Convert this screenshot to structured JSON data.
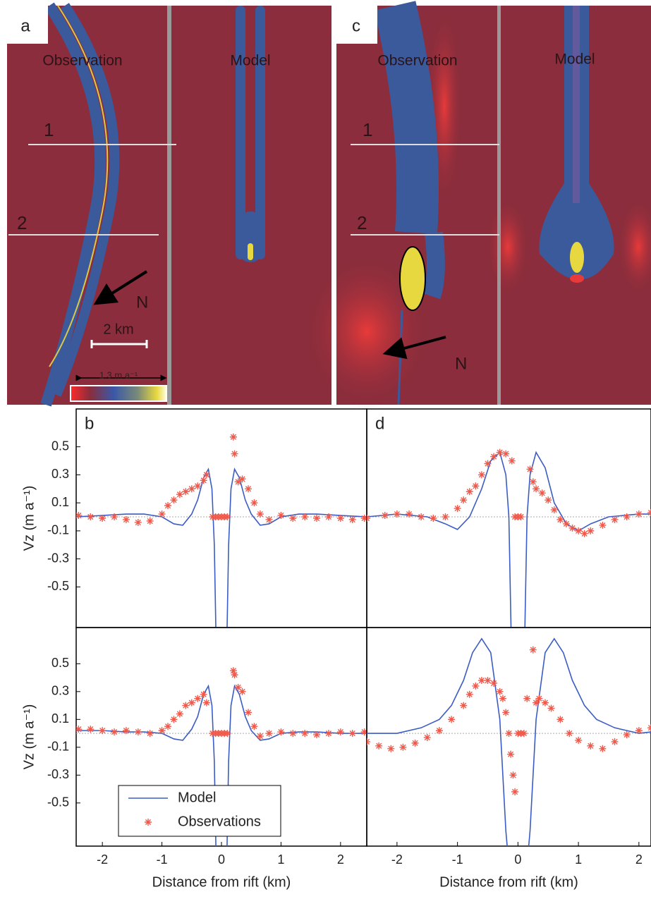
{
  "image_panels": [
    {
      "label": "a",
      "observation_title": "Observation",
      "model_title": "Model",
      "profiles": [
        "1",
        "2"
      ],
      "north": "N",
      "scale_bar": "2 km",
      "colorbar_label": "1.3 m a⁻¹"
    },
    {
      "label": "c",
      "observation_title": "Observation",
      "model_title": "Model",
      "profiles": [
        "1",
        "2"
      ],
      "north": "N"
    }
  ],
  "chart_data": [
    {
      "type": "line",
      "panel_label": "b",
      "ylabel": "Vz (m a⁻¹)",
      "xlim": [
        -2.44,
        2.44
      ],
      "ylim": [
        -0.79,
        0.77
      ],
      "yticks": [
        0.5,
        0.3,
        0.1,
        -0.1,
        -0.3,
        -0.5
      ],
      "series": [
        {
          "mode": "line",
          "color": "#3b5cc4",
          "x": [
            -2.44,
            -2,
            -1.6,
            -1.3,
            -1,
            -0.8,
            -0.65,
            -0.5,
            -0.4,
            -0.3,
            -0.22,
            -0.16,
            -0.12,
            -0.09,
            0.09,
            0.12,
            0.16,
            0.22,
            0.3,
            0.4,
            0.5,
            0.65,
            0.8,
            1,
            1.3,
            1.6,
            2,
            2.44
          ],
          "values": [
            0,
            0.01,
            0.02,
            0.02,
            0,
            -0.05,
            -0.06,
            0.02,
            0.12,
            0.28,
            0.34,
            0.2,
            -0.2,
            -0.9,
            -0.9,
            -0.2,
            0.2,
            0.34,
            0.28,
            0.12,
            0.02,
            -0.06,
            -0.05,
            0,
            0.02,
            0.02,
            0.01,
            0
          ]
        },
        {
          "mode": "markers",
          "color": "#f0584a",
          "x": [
            -2.4,
            -2.2,
            -2.0,
            -1.8,
            -1.6,
            -1.4,
            -1.2,
            -1.0,
            -0.9,
            -0.8,
            -0.7,
            -0.6,
            -0.5,
            -0.4,
            -0.3,
            -0.25,
            -0.15,
            -0.1,
            -0.05,
            0,
            0.05,
            0.1,
            0.2,
            0.22,
            0.28,
            0.35,
            0.45,
            0.55,
            0.65,
            0.8,
            1.0,
            1.2,
            1.4,
            1.6,
            1.8,
            2.0,
            2.2,
            2.4
          ],
          "values": [
            0.01,
            0.0,
            -0.01,
            0.0,
            -0.02,
            -0.04,
            -0.03,
            0.02,
            0.08,
            0.12,
            0.16,
            0.18,
            0.2,
            0.22,
            0.26,
            0.3,
            0,
            0,
            0,
            0,
            0,
            0,
            0.57,
            0.45,
            0.25,
            0.27,
            0.2,
            0.1,
            0.02,
            -0.02,
            0.01,
            -0.01,
            0,
            -0.01,
            0,
            -0.01,
            -0.02,
            -0.01
          ]
        }
      ]
    },
    {
      "type": "line",
      "panel_label": "d",
      "xlim": [
        -2.5,
        2.2
      ],
      "ylim": [
        -0.79,
        0.77
      ],
      "series": [
        {
          "mode": "line",
          "color": "#3b5cc4",
          "x": [
            -2.5,
            -2,
            -1.5,
            -1.2,
            -1,
            -0.8,
            -0.6,
            -0.45,
            -0.3,
            -0.2,
            -0.15,
            -0.11,
            0.11,
            0.15,
            0.2,
            0.3,
            0.45,
            0.6,
            0.8,
            1,
            1.2,
            1.5,
            2,
            2.2
          ],
          "values": [
            0.0,
            0.02,
            0.0,
            -0.05,
            -0.09,
            0.0,
            0.2,
            0.4,
            0.46,
            0.3,
            0.0,
            -0.9,
            -0.9,
            0.0,
            0.3,
            0.46,
            0.35,
            0.1,
            -0.05,
            -0.1,
            -0.05,
            0.0,
            0.02,
            0.02
          ]
        },
        {
          "mode": "markers",
          "color": "#f0584a",
          "x": [
            -2.5,
            -2.2,
            -2.0,
            -1.8,
            -1.6,
            -1.4,
            -1.2,
            -1.0,
            -0.9,
            -0.8,
            -0.7,
            -0.6,
            -0.5,
            -0.4,
            -0.3,
            -0.2,
            -0.1,
            -0.05,
            0,
            0.05,
            0.2,
            0.25,
            0.3,
            0.4,
            0.5,
            0.6,
            0.7,
            0.8,
            0.9,
            1.0,
            1.1,
            1.2,
            1.4,
            1.6,
            1.8,
            2.0,
            2.2
          ],
          "values": [
            -0.01,
            0.01,
            0.02,
            0.02,
            0.0,
            -0.01,
            0.0,
            0.06,
            0.12,
            0.18,
            0.22,
            0.3,
            0.38,
            0.43,
            0.46,
            0.45,
            0.4,
            0,
            0,
            0,
            0.34,
            0.25,
            0.2,
            0.17,
            0.12,
            0.05,
            -0.02,
            -0.05,
            -0.08,
            -0.1,
            -0.12,
            -0.1,
            -0.06,
            -0.02,
            0.0,
            0.02,
            0.03
          ]
        }
      ]
    },
    {
      "type": "line",
      "ylabel": "Vz (m a⁻¹)",
      "xlabel": "Distance from rift (km)",
      "xlim": [
        -2.44,
        2.44
      ],
      "ylim": [
        -0.81,
        0.76
      ],
      "xticks": [
        -2,
        -1,
        0,
        1,
        2
      ],
      "yticks": [
        0.5,
        0.3,
        0.1,
        -0.1,
        -0.3,
        -0.5
      ],
      "legend": "lower left",
      "series": [
        {
          "name": "Model",
          "mode": "line",
          "color": "#3b5cc4",
          "x": [
            -2.44,
            -2,
            -1.6,
            -1.3,
            -1,
            -0.8,
            -0.65,
            -0.5,
            -0.4,
            -0.3,
            -0.22,
            -0.16,
            -0.12,
            -0.09,
            0.09,
            0.12,
            0.16,
            0.22,
            0.3,
            0.4,
            0.5,
            0.65,
            0.8,
            1,
            1.3,
            1.6,
            2,
            2.44
          ],
          "values": [
            0.02,
            0.02,
            0.01,
            0.01,
            0,
            -0.04,
            -0.05,
            0.03,
            0.12,
            0.28,
            0.34,
            0.2,
            -0.2,
            -0.9,
            -0.9,
            -0.2,
            0.2,
            0.34,
            0.28,
            0.12,
            0.02,
            -0.05,
            -0.04,
            0,
            0.01,
            0.01,
            0.0,
            0.0
          ]
        },
        {
          "name": "Observations",
          "mode": "markers",
          "color": "#f0584a",
          "x": [
            -2.4,
            -2.2,
            -2.0,
            -1.8,
            -1.6,
            -1.4,
            -1.2,
            -1.0,
            -0.9,
            -0.8,
            -0.7,
            -0.6,
            -0.5,
            -0.4,
            -0.3,
            -0.25,
            -0.15,
            -0.1,
            -0.05,
            0,
            0.05,
            0.1,
            0.2,
            0.22,
            0.28,
            0.35,
            0.45,
            0.55,
            0.65,
            0.8,
            1.0,
            1.2,
            1.4,
            1.6,
            1.8,
            2.0,
            2.2,
            2.4
          ],
          "values": [
            0.03,
            0.03,
            0.02,
            0.01,
            0.02,
            0.01,
            0.0,
            0.02,
            0.05,
            0.1,
            0.14,
            0.2,
            0.22,
            0.25,
            0.28,
            0.22,
            0,
            0,
            0,
            0,
            0,
            0,
            0.45,
            0.42,
            0.33,
            0.3,
            0.15,
            0.05,
            -0.02,
            0.0,
            0.01,
            0.0,
            0.0,
            -0.01,
            0.0,
            0.01,
            0.0,
            0.01
          ]
        }
      ]
    },
    {
      "type": "line",
      "xlabel": "Distance from rift (km)",
      "xlim": [
        -2.5,
        2.2
      ],
      "ylim": [
        -0.81,
        0.76
      ],
      "xticks": [
        -2,
        -1,
        0,
        1,
        2
      ],
      "series": [
        {
          "mode": "line",
          "color": "#3b5cc4",
          "x": [
            -2.5,
            -2,
            -1.6,
            -1.3,
            -1.1,
            -0.9,
            -0.75,
            -0.6,
            -0.45,
            -0.3,
            -0.2,
            -0.15,
            0.15,
            0.2,
            0.3,
            0.45,
            0.6,
            0.75,
            0.9,
            1.1,
            1.3,
            1.6,
            2,
            2.2
          ],
          "values": [
            0.0,
            0.0,
            0.04,
            0.1,
            0.2,
            0.38,
            0.58,
            0.68,
            0.58,
            0.1,
            -0.7,
            -0.95,
            -0.95,
            -0.7,
            0.1,
            0.58,
            0.68,
            0.58,
            0.38,
            0.2,
            0.1,
            0.04,
            0.0,
            0.01
          ]
        },
        {
          "mode": "markers",
          "color": "#f0584a",
          "x": [
            -2.5,
            -2.3,
            -2.1,
            -1.9,
            -1.7,
            -1.5,
            -1.3,
            -1.1,
            -0.9,
            -0.8,
            -0.7,
            -0.6,
            -0.5,
            -0.4,
            -0.3,
            -0.25,
            -0.2,
            -0.15,
            -0.12,
            -0.08,
            -0.05,
            0,
            0.05,
            0.1,
            0.15,
            0.25,
            0.3,
            0.35,
            0.45,
            0.55,
            0.7,
            0.85,
            1.0,
            1.2,
            1.4,
            1.6,
            1.8,
            2.0,
            2.2
          ],
          "values": [
            -0.06,
            -0.09,
            -0.11,
            -0.1,
            -0.07,
            -0.03,
            0.02,
            0.1,
            0.2,
            0.28,
            0.34,
            0.38,
            0.38,
            0.36,
            0.3,
            0.25,
            0.15,
            0.0,
            -0.15,
            -0.3,
            -0.42,
            0,
            0,
            0,
            0.25,
            0.6,
            0.22,
            0.25,
            0.22,
            0.18,
            0.1,
            0.0,
            -0.05,
            -0.09,
            -0.11,
            -0.06,
            -0.01,
            0.02,
            0.04
          ]
        }
      ]
    }
  ]
}
